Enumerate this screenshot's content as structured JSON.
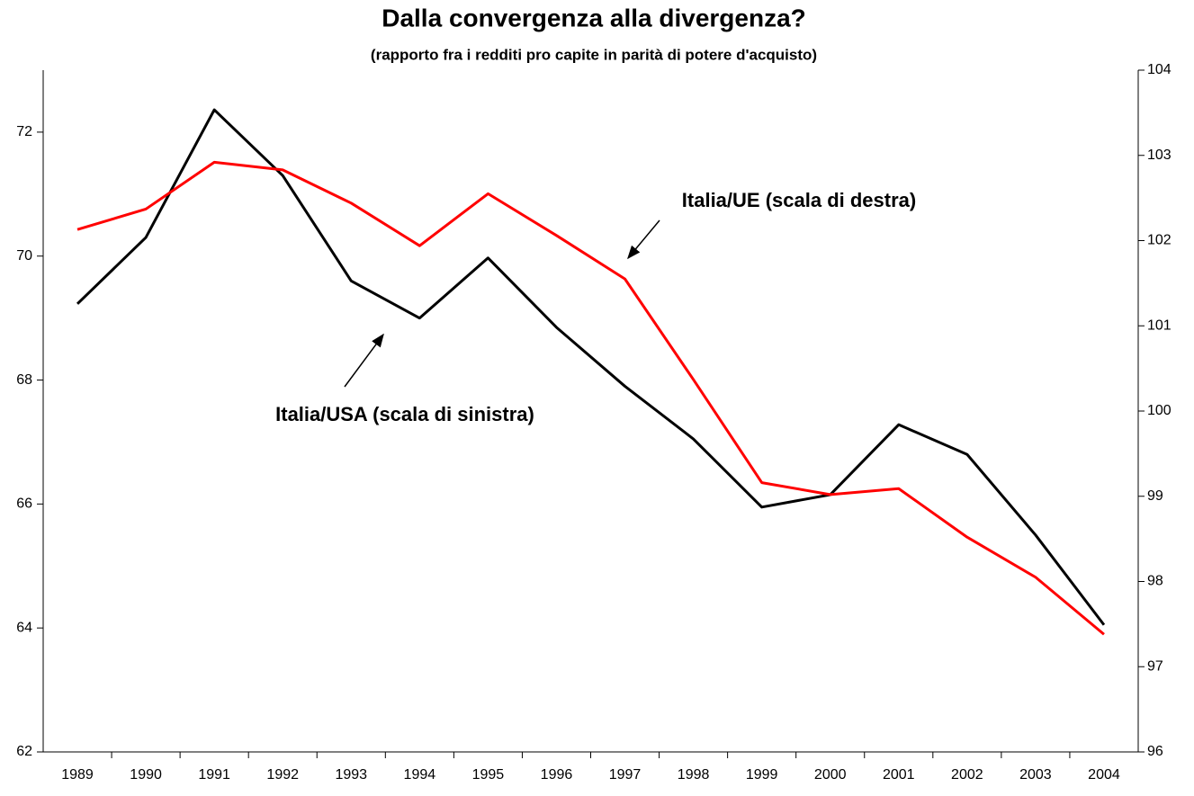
{
  "chart_data": {
    "type": "line",
    "title": "Dalla convergenza alla divergenza?",
    "subtitle": "(rapporto fra i redditi pro capite in parità di potere d'acquisto)",
    "categories": [
      "1989",
      "1990",
      "1991",
      "1992",
      "1993",
      "1994",
      "1995",
      "1996",
      "1997",
      "1998",
      "1999",
      "2000",
      "2001",
      "2002",
      "2003",
      "2004"
    ],
    "series": [
      {
        "name": "Italia/USA (scala di sinistra)",
        "color": "#000000",
        "axis": "y",
        "values": [
          69.23,
          70.3,
          72.36,
          71.3,
          69.6,
          69.0,
          69.97,
          68.85,
          67.9,
          67.05,
          65.95,
          66.15,
          67.28,
          66.8,
          65.5,
          64.05
        ]
      },
      {
        "name": "Italia/UE (scala di destra)",
        "color": "#ff0000",
        "axis": "y2",
        "values": [
          102.13,
          102.37,
          102.92,
          102.83,
          102.44,
          101.94,
          102.55,
          102.06,
          101.55,
          100.37,
          99.16,
          99.02,
          99.09,
          98.52,
          98.05,
          97.38
        ]
      }
    ],
    "ylim": [
      62,
      73
    ],
    "yticks": [
      62,
      64,
      66,
      68,
      70,
      72
    ],
    "y2lim": [
      96,
      104
    ],
    "y2ticks": [
      96,
      97,
      98,
      99,
      100,
      101,
      102,
      103,
      104
    ],
    "grid": false
  }
}
